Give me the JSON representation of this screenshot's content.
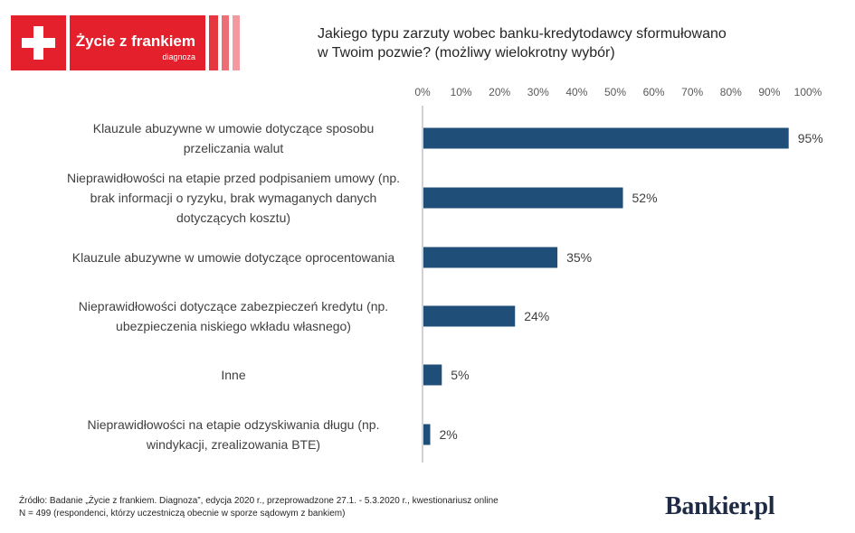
{
  "logo": {
    "name": "Życie z frankiem",
    "subtitle": "diagnoza"
  },
  "title_line1": "Jakiego typu zarzuty wobec banku-kredytodawcy sformułowano",
  "title_line2": "w Twoim pozwie? (możliwy wielokrotny wybór)",
  "source_line1": "Źródło: Badanie „Życie z frankiem. Diagnoza”, edycja 2020 r., przeprowadzone 27.1. - 5.3.2020 r., kwestionariusz online",
  "source_line2": "N = 499 (respondenci, którzy uczestniczą obecnie w sporze sądowym z bankiem)",
  "brand": "Bankier.pl",
  "colors": {
    "bar": "#1f4e79",
    "brand_red": "#e3202b"
  },
  "chart_data": {
    "type": "bar",
    "orientation": "horizontal",
    "categories": [
      [
        "Klauzule abuzywne w umowie dotyczące sposobu",
        "przeliczania walut"
      ],
      [
        "Nieprawidłowości na etapie przed podpisaniem umowy (np.",
        "brak informacji o ryzyku, brak wymaganych danych",
        "dotyczących kosztu)"
      ],
      [
        "Klauzule abuzywne w umowie dotyczące oprocentowania"
      ],
      [
        "Nieprawidłowości dotyczące zabezpieczeń kredytu (np.",
        "ubezpieczenia niskiego wkładu własnego)"
      ],
      [
        "Inne"
      ],
      [
        "Nieprawidłowości na etapie odzyskiwania długu (np.",
        "windykacji, zrealizowania BTE)"
      ]
    ],
    "values": [
      95,
      52,
      35,
      24,
      5,
      2
    ],
    "data_labels": [
      "95%",
      "52%",
      "35%",
      "24%",
      "5%",
      "2%"
    ],
    "xlim": [
      0,
      100
    ],
    "ticks": [
      0,
      10,
      20,
      30,
      40,
      50,
      60,
      70,
      80,
      90,
      100
    ],
    "tick_labels": [
      "0%",
      "10%",
      "20%",
      "30%",
      "40%",
      "50%",
      "60%",
      "70%",
      "80%",
      "90%",
      "100%"
    ],
    "axis_position": "top",
    "grid": false,
    "legend": "none"
  }
}
